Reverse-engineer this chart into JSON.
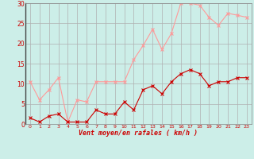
{
  "x": [
    0,
    1,
    2,
    3,
    4,
    5,
    6,
    7,
    8,
    9,
    10,
    11,
    12,
    13,
    14,
    15,
    16,
    17,
    18,
    19,
    20,
    21,
    22,
    23
  ],
  "wind_avg": [
    1.5,
    0.5,
    2.0,
    2.5,
    0.5,
    0.5,
    0.5,
    3.5,
    2.5,
    2.5,
    5.5,
    3.5,
    8.5,
    9.5,
    7.5,
    10.5,
    12.5,
    13.5,
    12.5,
    9.5,
    10.5,
    10.5,
    11.5,
    11.5
  ],
  "wind_gust": [
    10.5,
    6.0,
    8.5,
    11.5,
    0.5,
    6.0,
    5.5,
    10.5,
    10.5,
    10.5,
    10.5,
    16.0,
    19.5,
    23.5,
    18.5,
    22.5,
    30.0,
    30.0,
    29.5,
    26.5,
    24.5,
    27.5,
    27.0,
    26.5
  ],
  "xlabel": "Vent moyen/en rafales ( km/h )",
  "ylim": [
    0,
    30
  ],
  "xlim": [
    -0.5,
    23.5
  ],
  "yticks": [
    0,
    5,
    10,
    15,
    20,
    25,
    30
  ],
  "xticks": [
    0,
    1,
    2,
    3,
    4,
    5,
    6,
    7,
    8,
    9,
    10,
    11,
    12,
    13,
    14,
    15,
    16,
    17,
    18,
    19,
    20,
    21,
    22,
    23
  ],
  "avg_color": "#cc0000",
  "gust_color": "#ff9999",
  "bg_color": "#cceee8",
  "grid_color": "#b0b0b0",
  "text_color": "#cc0000"
}
